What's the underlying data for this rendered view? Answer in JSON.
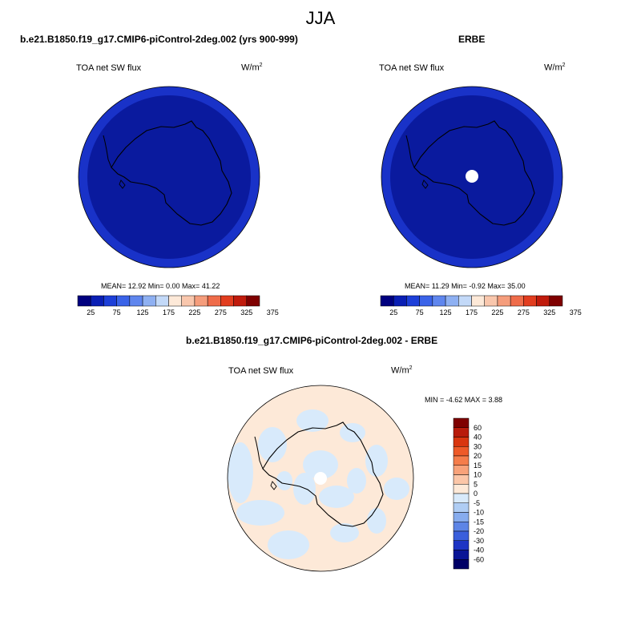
{
  "figure": {
    "title": "JJA",
    "colors": {
      "ocean_dark": "#0a1a9e",
      "ring": "#1932c8",
      "pos_pale": "#fde9d8",
      "neg_pale": "#d8eafb"
    }
  },
  "left_panel": {
    "title": "b.e21.B1850.f19_g17.CMIP6-piControl-2deg.002 (yrs 900-999)",
    "variable": "TOA net SW flux",
    "units": "W/m",
    "units_exp": "2",
    "stats": "MEAN=  12.92  Min=   0.00  Max=  41.22"
  },
  "right_panel": {
    "title": "ERBE",
    "variable": "TOA net SW flux",
    "units": "W/m",
    "units_exp": "2",
    "stats": "MEAN=  11.29  Min=  -0.92  Max=  35.00"
  },
  "diff_panel": {
    "title": "b.e21.B1850.f19_g17.CMIP6-piControl-2deg.002 - ERBE",
    "variable": "TOA net SW flux",
    "units": "W/m",
    "units_exp": "2",
    "stats": "MIN =  -4.62 MAX =   3.88"
  },
  "chart_data": [
    {
      "type": "heatmap",
      "title": "b.e21.B1850.f19_g17.CMIP6-piControl-2deg.002 (yrs 900-999)",
      "subtitle": "TOA net SW flux",
      "units": "W/m2",
      "stats": {
        "mean": 12.92,
        "min": 0.0,
        "max": 41.22
      },
      "colorbar_ticks": [
        "25",
        "75",
        "125",
        "175",
        "225",
        "275",
        "325",
        "375"
      ],
      "colorbar_colors": [
        "#00007f",
        "#0a1fb4",
        "#1d3fd8",
        "#3a63e8",
        "#5f86ee",
        "#8eb0f2",
        "#c3d9f8",
        "#fde9d8",
        "#f9c7ad",
        "#f59d7c",
        "#ef6c4a",
        "#e23d1f",
        "#c01b0c",
        "#7f0000"
      ]
    },
    {
      "type": "heatmap",
      "title": "ERBE",
      "subtitle": "TOA net SW flux",
      "units": "W/m2",
      "stats": {
        "mean": 11.29,
        "min": -0.92,
        "max": 35.0
      },
      "colorbar_ticks": [
        "25",
        "75",
        "125",
        "175",
        "225",
        "275",
        "325",
        "375"
      ],
      "colorbar_colors": [
        "#00007f",
        "#0a1fb4",
        "#1d3fd8",
        "#3a63e8",
        "#5f86ee",
        "#8eb0f2",
        "#c3d9f8",
        "#fde9d8",
        "#f9c7ad",
        "#f59d7c",
        "#ef6c4a",
        "#e23d1f",
        "#c01b0c",
        "#7f0000"
      ]
    },
    {
      "type": "heatmap",
      "title": "b.e21.B1850.f19_g17.CMIP6-piControl-2deg.002 - ERBE",
      "subtitle": "TOA net SW flux",
      "units": "W/m2",
      "stats": {
        "min": -4.62,
        "max": 3.88
      },
      "colorbar_ticks": [
        "60",
        "40",
        "30",
        "20",
        "15",
        "10",
        "5",
        "0",
        "-5",
        "-10",
        "-15",
        "-20",
        "-30",
        "-40",
        "-60"
      ],
      "colorbar_colors": [
        "#7f0000",
        "#b81b0b",
        "#d9360f",
        "#ee5a28",
        "#f57d4b",
        "#f8a27a",
        "#fbc6a8",
        "#fde9d8",
        "#d8eafb",
        "#afcdf4",
        "#87acee",
        "#5d85e6",
        "#3a5fdc",
        "#1d34c4",
        "#0a1596",
        "#000066"
      ]
    }
  ]
}
